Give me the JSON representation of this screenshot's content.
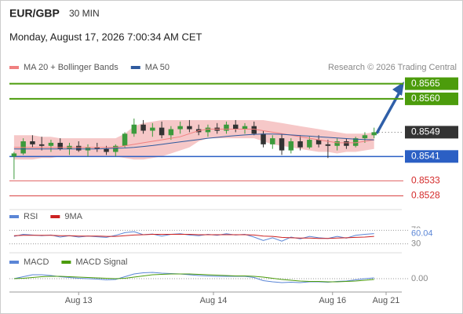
{
  "header": {
    "symbol": "EUR/GBP",
    "interval": "30 MIN",
    "timestamp": "Monday, August 17, 2026 7:00:34 AM CET",
    "credit": "Research © 2026 Trading Central"
  },
  "chart_data": [
    {
      "type": "candlestick",
      "ylim": [
        0.8524,
        0.8568
      ],
      "xlim": [
        -0.5,
        42
      ],
      "open": [
        0.8541,
        0.8542,
        0.8546,
        0.8545,
        0.85445,
        0.85455,
        0.85435,
        0.85445,
        0.8543,
        0.8544,
        0.85435,
        0.85425,
        0.85445,
        0.85485,
        0.85515,
        0.85495,
        0.85505,
        0.8548,
        0.855,
        0.8551,
        0.855,
        0.8549,
        0.85505,
        0.85495,
        0.85515,
        0.855,
        0.8551,
        0.85485,
        0.8545,
        0.8547,
        0.8543,
        0.8546,
        0.8544,
        0.85465,
        0.8545,
        0.85445,
        0.8546,
        0.85445,
        0.8547,
        0.8548
      ],
      "high": [
        0.85425,
        0.8547,
        0.8548,
        0.85475,
        0.85465,
        0.8547,
        0.85455,
        0.8546,
        0.8545,
        0.85455,
        0.85445,
        0.8545,
        0.8549,
        0.85535,
        0.8553,
        0.8552,
        0.85525,
        0.8551,
        0.85525,
        0.8553,
        0.85515,
        0.85515,
        0.8552,
        0.85525,
        0.8553,
        0.8552,
        0.85525,
        0.85495,
        0.8548,
        0.85485,
        0.8547,
        0.8548,
        0.85475,
        0.8548,
        0.85465,
        0.8547,
        0.8547,
        0.85475,
        0.8549,
        0.85505
      ],
      "low": [
        0.85335,
        0.85415,
        0.8544,
        0.8543,
        0.85425,
        0.8543,
        0.85415,
        0.85425,
        0.8541,
        0.85425,
        0.85415,
        0.8541,
        0.8544,
        0.85475,
        0.85485,
        0.85475,
        0.8547,
        0.85465,
        0.85485,
        0.8549,
        0.8548,
        0.85475,
        0.85485,
        0.85485,
        0.8549,
        0.85485,
        0.8548,
        0.8544,
        0.85435,
        0.85415,
        0.8542,
        0.8543,
        0.85435,
        0.8544,
        0.85405,
        0.8543,
        0.85435,
        0.8544,
        0.85455,
        0.8547
      ],
      "close": [
        0.8542,
        0.8546,
        0.8545,
        0.85445,
        0.85455,
        0.85435,
        0.85445,
        0.8543,
        0.8544,
        0.85435,
        0.85425,
        0.85445,
        0.85485,
        0.85515,
        0.85495,
        0.85505,
        0.8548,
        0.855,
        0.8551,
        0.855,
        0.8549,
        0.85505,
        0.85495,
        0.85515,
        0.855,
        0.8551,
        0.85485,
        0.8545,
        0.8547,
        0.8543,
        0.8546,
        0.8544,
        0.85465,
        0.8545,
        0.85445,
        0.8546,
        0.85445,
        0.8547,
        0.8548,
        0.8549
      ],
      "up_color": "#3c9a3c",
      "down_color": "#333333",
      "series": [
        {
          "name": "MA 20 + Bollinger Bands",
          "color": "#f08080",
          "values": [
            0.8544,
            0.8544,
            0.8544,
            0.8544,
            0.8544,
            0.8544,
            0.8544,
            0.8544,
            0.8544,
            0.8544,
            0.8544,
            0.8544,
            0.85445,
            0.8545,
            0.85455,
            0.8546,
            0.85465,
            0.8547,
            0.85475,
            0.85485,
            0.85495,
            0.855,
            0.855,
            0.855,
            0.855,
            0.855,
            0.855,
            0.85495,
            0.8549,
            0.85485,
            0.8548,
            0.85475,
            0.8547,
            0.85465,
            0.8546,
            0.85455,
            0.85455,
            0.85455,
            0.8546,
            0.85465
          ],
          "upper": [
            0.8548,
            0.8548,
            0.8548,
            0.85475,
            0.85475,
            0.8547,
            0.8547,
            0.8547,
            0.8547,
            0.8547,
            0.8547,
            0.8547,
            0.85485,
            0.8551,
            0.8552,
            0.85525,
            0.8553,
            0.8553,
            0.8553,
            0.8553,
            0.8553,
            0.8553,
            0.8553,
            0.8553,
            0.8553,
            0.8553,
            0.8553,
            0.8553,
            0.85525,
            0.8552,
            0.85515,
            0.8551,
            0.85505,
            0.855,
            0.85495,
            0.8549,
            0.85485,
            0.85485,
            0.85485,
            0.8549
          ],
          "lower": [
            0.854,
            0.854,
            0.854,
            0.85405,
            0.85405,
            0.8541,
            0.8541,
            0.8541,
            0.8541,
            0.8541,
            0.8541,
            0.8541,
            0.85405,
            0.854,
            0.854,
            0.85405,
            0.8541,
            0.8542,
            0.8543,
            0.8544,
            0.8546,
            0.8547,
            0.8547,
            0.8547,
            0.8547,
            0.8547,
            0.8547,
            0.8546,
            0.8545,
            0.85445,
            0.8544,
            0.85435,
            0.8543,
            0.85425,
            0.85425,
            0.8542,
            0.85425,
            0.85425,
            0.8543,
            0.85435
          ],
          "band_color": "#f6c8c8"
        },
        {
          "name": "MA 50",
          "color": "#2f5a9e",
          "values": [
            0.85435,
            0.85435,
            0.85435,
            0.85435,
            0.85435,
            0.85435,
            0.85435,
            0.85435,
            0.85435,
            0.85435,
            0.85436,
            0.85437,
            0.85438,
            0.8544,
            0.85443,
            0.85446,
            0.8545,
            0.85454,
            0.85458,
            0.85462,
            0.85466,
            0.8547,
            0.85473,
            0.85476,
            0.85479,
            0.85481,
            0.85483,
            0.85484,
            0.85484,
            0.85483,
            0.85481,
            0.85479,
            0.85477,
            0.85475,
            0.85473,
            0.85471,
            0.85469,
            0.85467,
            0.85466,
            0.85465
          ]
        }
      ],
      "levels": [
        {
          "value": 0.8565,
          "label": "0.8565",
          "color": "#4c9c0c",
          "boxed": true,
          "line": "thick"
        },
        {
          "value": 0.856,
          "label": "0.8560",
          "color": "#4c9c0c",
          "boxed": true,
          "line": "thick"
        },
        {
          "value": 0.8549,
          "label": "0.8549",
          "color": "#333333",
          "boxed": true,
          "line": "dotted"
        },
        {
          "value": 0.8541,
          "label": "0.8541",
          "color": "#2b5fc4",
          "boxed": true,
          "line": "solid"
        },
        {
          "value": 0.8533,
          "label": "0.8533",
          "color": "#d42a2a",
          "boxed": false,
          "line": "thin"
        },
        {
          "value": 0.8528,
          "label": "0.8528",
          "color": "#d42a2a",
          "boxed": false,
          "line": "thin"
        }
      ]
    },
    {
      "type": "line",
      "ylim": [
        20,
        80
      ],
      "xlim": [
        -0.5,
        42
      ],
      "yticks": [
        70,
        30
      ],
      "series": [
        {
          "name": "RSI",
          "color": "#5b86d6",
          "values": [
            52,
            58,
            56,
            54,
            56,
            50,
            54,
            50,
            53,
            51,
            49,
            55,
            63,
            66,
            57,
            59,
            53,
            58,
            60,
            56,
            54,
            58,
            55,
            60,
            56,
            58,
            50,
            40,
            48,
            38,
            50,
            45,
            52,
            48,
            46,
            52,
            47,
            55,
            58,
            60.04
          ],
          "last_label": "60.04"
        },
        {
          "name": "9MA",
          "color": "#cc2222",
          "values": [
            54,
            55,
            55,
            55,
            55,
            54,
            54,
            53,
            53,
            53,
            52,
            52,
            54,
            56,
            57,
            58,
            58,
            58,
            58,
            58,
            57,
            57,
            57,
            57,
            57,
            57,
            56,
            53,
            52,
            49,
            48,
            47,
            47,
            46,
            46,
            47,
            48,
            49,
            50,
            52
          ]
        }
      ]
    },
    {
      "type": "line",
      "ylim": [
        -0.0003,
        0.0003
      ],
      "xlim": [
        -0.5,
        42
      ],
      "yticks": [
        {
          "value": 0,
          "label": "0.00"
        }
      ],
      "xticks": [
        {
          "value": 7,
          "label": "Aug 13"
        },
        {
          "value": 21.6,
          "label": "Aug 14"
        },
        {
          "value": 34.5,
          "label": "Aug 16"
        },
        {
          "value": 40.3,
          "label": "Aug 21"
        }
      ],
      "series": [
        {
          "name": "MACD",
          "color": "#5b86d6",
          "values": [
            0,
            5e-05,
            0.0001,
            0.0001,
            8e-05,
            5e-05,
            3e-05,
            1e-05,
            0,
            -1e-05,
            -3e-05,
            -2e-05,
            5e-05,
            0.00012,
            0.00015,
            0.00016,
            0.00014,
            0.00013,
            0.00012,
            0.0001,
            8e-05,
            7e-05,
            6e-05,
            6e-05,
            6e-05,
            6e-05,
            3e-05,
            -5e-05,
            -8e-05,
            -0.0001,
            -9e-05,
            -0.0001,
            -8e-05,
            -8e-05,
            -9e-05,
            -7e-05,
            -6e-05,
            -3e-05,
            0,
            2e-05
          ]
        },
        {
          "name": "MACD Signal",
          "color": "#4c9c0c",
          "values": [
            0,
            1e-05,
            3e-05,
            5e-05,
            6e-05,
            6e-05,
            5e-05,
            4e-05,
            3e-05,
            2e-05,
            1e-05,
            0,
            1e-05,
            4e-05,
            7e-05,
            0.0001,
            0.00011,
            0.00012,
            0.00012,
            0.00012,
            0.00011,
            0.0001,
            9e-05,
            8e-05,
            7e-05,
            7e-05,
            6e-05,
            4e-05,
            1e-05,
            -2e-05,
            -4e-05,
            -6e-05,
            -7e-05,
            -7e-05,
            -8e-05,
            -8e-05,
            -7e-05,
            -6e-05,
            -4e-05,
            -2e-05
          ]
        }
      ]
    }
  ]
}
